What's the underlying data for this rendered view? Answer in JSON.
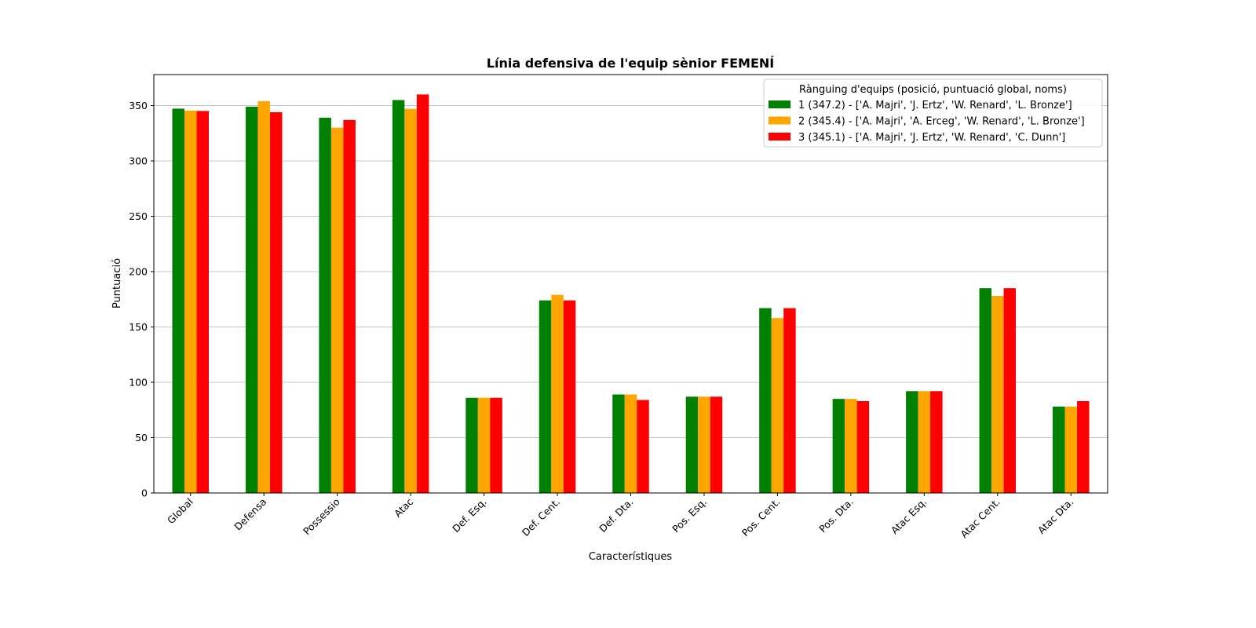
{
  "chart_data": {
    "type": "bar",
    "title": "Línia defensiva de l'equip sènior FEMENÍ",
    "xlabel": "Característiques",
    "ylabel": "Puntuació",
    "ylim": [
      0,
      378
    ],
    "yticks": [
      0,
      50,
      100,
      150,
      200,
      250,
      300,
      350
    ],
    "grid": "y",
    "legend_position": "top-right",
    "legend_title": "Rànguing d'equips (posició, puntuació global, noms)",
    "categories": [
      "Global",
      "Defensa",
      "Possessio",
      "Atac",
      "Def. Esq.",
      "Def. Cent.",
      "Def. Dta.",
      "Pos. Esq.",
      "Pos. Cent.",
      "Pos. Dta.",
      "Atac Esq.",
      "Atac Cent.",
      "Atac Dta."
    ],
    "series": [
      {
        "name": "1 (347.2) - ['A. Majri', 'J. Ertz', 'W. Renard', 'L. Bronze']",
        "color": "#008000",
        "values": [
          347.2,
          349,
          339,
          355,
          86,
          174,
          89,
          87,
          167,
          85,
          92,
          185,
          78
        ]
      },
      {
        "name": "2 (345.4) - ['A. Majri', 'A. Erceg', 'W. Renard', 'L. Bronze']",
        "color": "#FFA500",
        "values": [
          345.4,
          354,
          330,
          347,
          86,
          179,
          89,
          87,
          158,
          85,
          92,
          178,
          78
        ]
      },
      {
        "name": "3 (345.1) - ['A. Majri', 'J. Ertz', 'W. Renard', 'C. Dunn']",
        "color": "#FF0000",
        "values": [
          345.1,
          344,
          337,
          360,
          86,
          174,
          84,
          87,
          167,
          83,
          92,
          185,
          83
        ]
      }
    ]
  }
}
